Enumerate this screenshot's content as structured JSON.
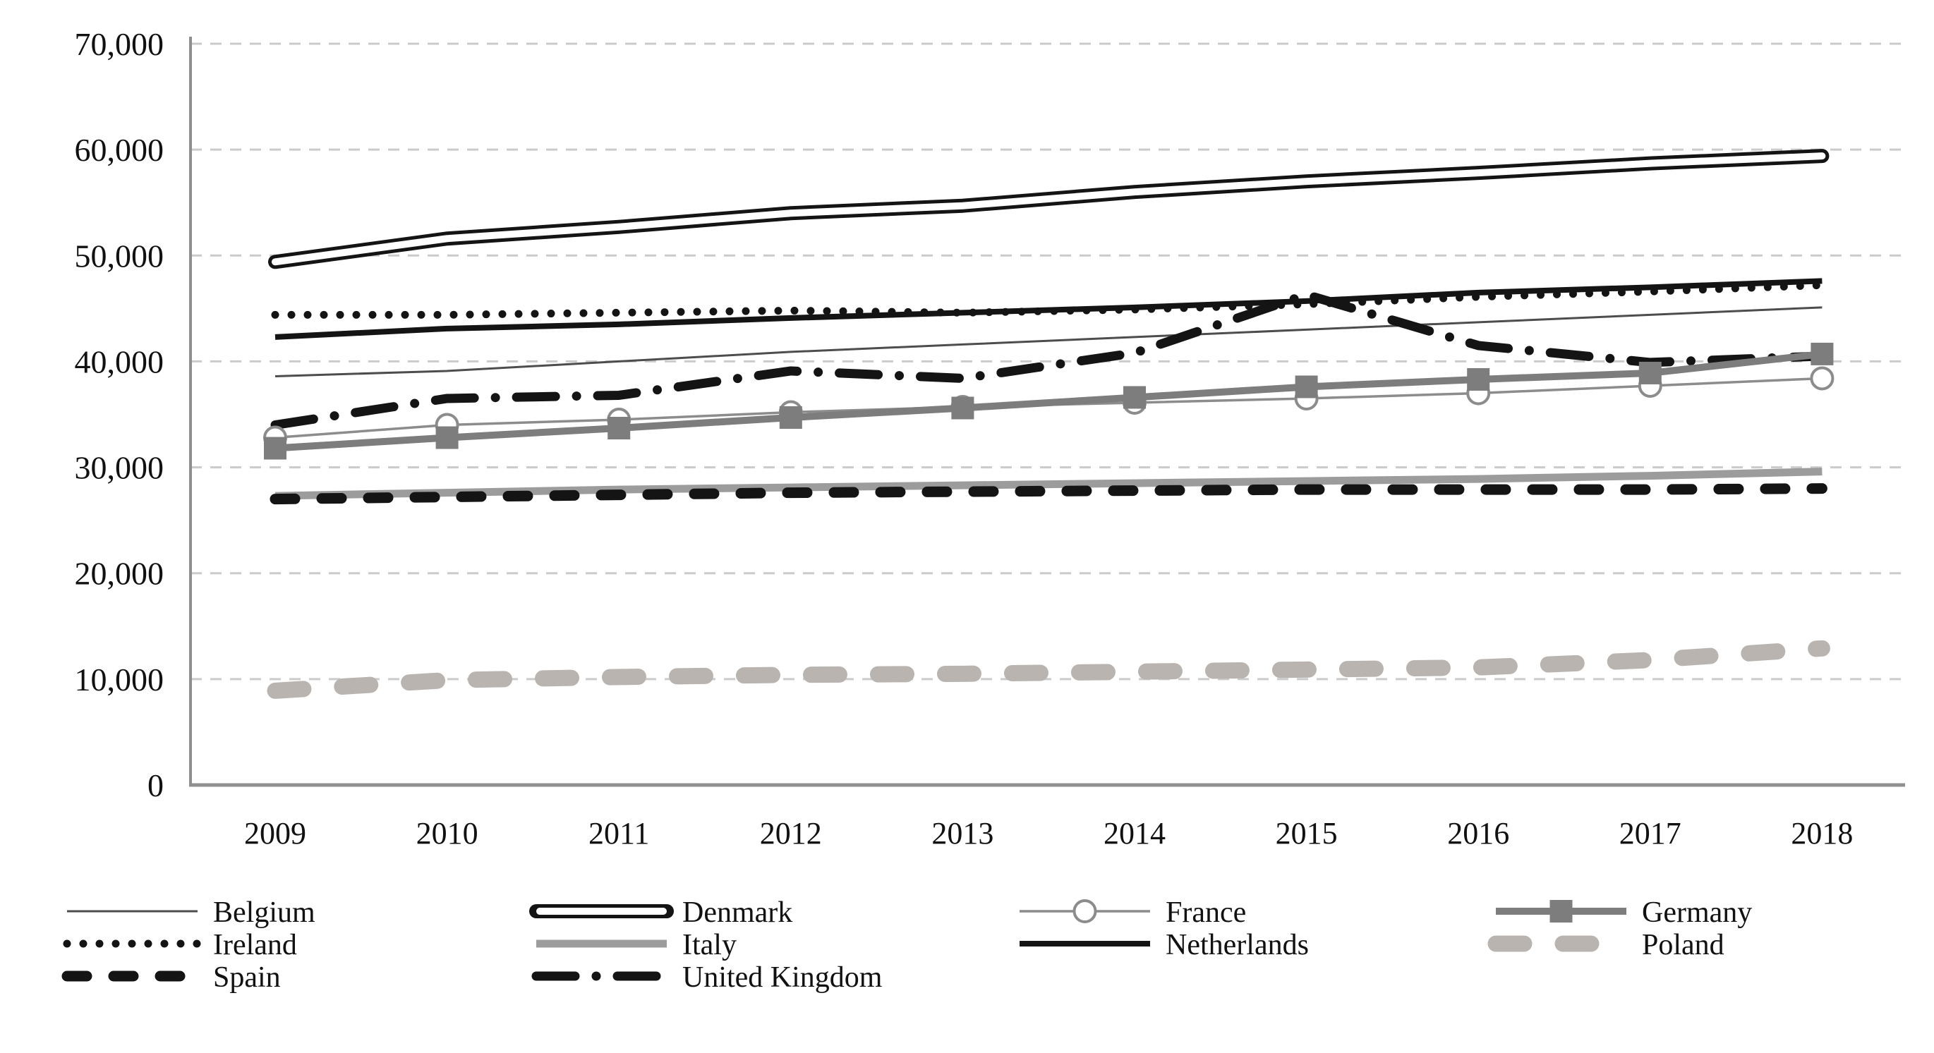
{
  "chart_data": {
    "type": "line",
    "title": "",
    "xlabel": "",
    "ylabel": "",
    "categories": [
      "2009",
      "2010",
      "2011",
      "2012",
      "2013",
      "2014",
      "2015",
      "2016",
      "2017",
      "2018"
    ],
    "ylim": [
      0,
      70000
    ],
    "ytick_step": 10000,
    "ytick_labels": [
      "0",
      "10,000",
      "20,000",
      "30,000",
      "40,000",
      "50,000",
      "60,000",
      "70,000"
    ],
    "grid": "horizontal dashed",
    "legend_position": "bottom",
    "colors": {
      "black_line": "#141414",
      "dark_gray_line": "#4d4d4d",
      "mid_gray_line": "#7d7d7d",
      "light_gray_line": "#9c9c9c",
      "pale_gray_line": "#b9b4b0",
      "grid_line": "#cbcbcb",
      "axis_line": "#8f8f8f",
      "text": "#111111",
      "marker_fill_white": "#ffffff"
    },
    "series": [
      {
        "name": "Belgium",
        "values": [
          38600,
          39100,
          40000,
          40900,
          41600,
          42300,
          43000,
          43700,
          44400,
          45100
        ],
        "color": "#4d4d4d",
        "width": 3,
        "dash": "",
        "cap": "butt",
        "marker": "none"
      },
      {
        "name": "Denmark",
        "values": [
          49400,
          51600,
          52700,
          54000,
          54700,
          56000,
          57000,
          57800,
          58700,
          59400
        ],
        "color": "#141414",
        "width": 20,
        "dash": "",
        "cap": "round",
        "marker": "none",
        "double_line": true,
        "inner_color": "#ffffff",
        "inner_width": 10
      },
      {
        "name": "France",
        "values": [
          32800,
          34000,
          34500,
          35200,
          35700,
          36100,
          36500,
          37000,
          37700,
          38400
        ],
        "color": "#8c8c8c",
        "width": 3.5,
        "dash": "",
        "cap": "butt",
        "marker": "circle",
        "marker_size": 15,
        "marker_fill": "#ffffff"
      },
      {
        "name": "Germany",
        "values": [
          31800,
          32800,
          33700,
          34700,
          35600,
          36600,
          37600,
          38300,
          38900,
          40700
        ],
        "color": "#7d7d7d",
        "width": 10,
        "dash": "",
        "cap": "butt",
        "marker": "square",
        "marker_size": 32,
        "marker_fill": "#7d7d7d"
      },
      {
        "name": "Ireland",
        "values": [
          44400,
          44400,
          44600,
          44800,
          44600,
          44900,
          45400,
          46100,
          46600,
          47200
        ],
        "color": "#141414",
        "width": 11,
        "dash": "0 23",
        "cap": "round",
        "marker": "none"
      },
      {
        "name": "Italy",
        "values": [
          27300,
          27600,
          27900,
          28100,
          28300,
          28500,
          28700,
          28900,
          29200,
          29600
        ],
        "color": "#9c9c9c",
        "width": 11,
        "dash": "",
        "cap": "butt",
        "marker": "none"
      },
      {
        "name": "Netherlands",
        "values": [
          42300,
          43100,
          43500,
          44100,
          44600,
          45100,
          45700,
          46500,
          47000,
          47600
        ],
        "color": "#141414",
        "width": 8,
        "dash": "",
        "cap": "butt",
        "marker": "none"
      },
      {
        "name": "Poland",
        "values": [
          8900,
          9900,
          10200,
          10400,
          10500,
          10700,
          10900,
          11100,
          11800,
          12900
        ],
        "color": "#b9b4b0",
        "width": 23,
        "dash": "40 55",
        "cap": "round",
        "marker": "none"
      },
      {
        "name": "Spain",
        "values": [
          27000,
          27200,
          27400,
          27600,
          27700,
          27800,
          27900,
          27900,
          27900,
          28000
        ],
        "color": "#141414",
        "width": 15,
        "dash": "28 38",
        "cap": "round",
        "marker": "none"
      },
      {
        "name": "United Kingdom",
        "values": [
          34000,
          36500,
          36800,
          39100,
          38400,
          40800,
          46300,
          41500,
          39900,
          40500
        ],
        "color": "#141414",
        "width": 13,
        "dash": "55 30 0 30",
        "cap": "round",
        "marker": "none"
      }
    ],
    "legend_rows": [
      [
        "Belgium",
        "Denmark",
        "France",
        "Germany"
      ],
      [
        "Ireland",
        "Italy",
        "Netherlands",
        "Poland"
      ],
      [
        "Spain",
        "United Kingdom"
      ]
    ]
  }
}
